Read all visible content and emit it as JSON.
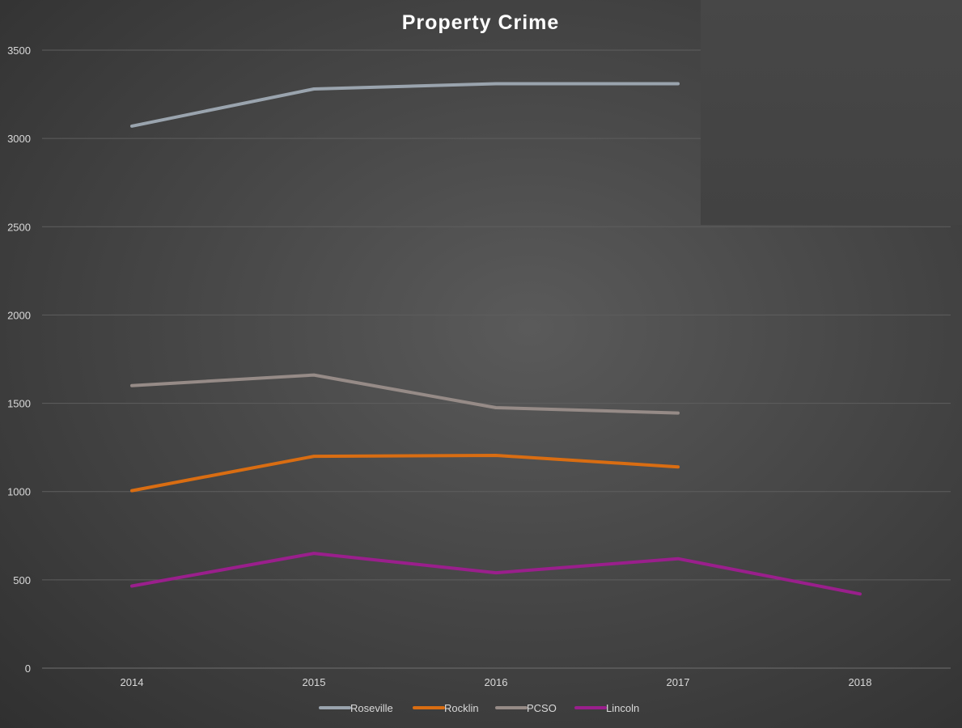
{
  "chart_data": {
    "type": "line",
    "title": "Property Crime",
    "xlabel": "",
    "ylabel": "",
    "categories": [
      "2014",
      "2015",
      "2016",
      "2017",
      "2018"
    ],
    "ylim": [
      0,
      3500
    ],
    "yticks": [
      0,
      500,
      1000,
      1500,
      2000,
      2500,
      3000,
      3500
    ],
    "grid": true,
    "legend_position": "bottom",
    "series": [
      {
        "name": "Roseville",
        "color": "#9aa4ae",
        "values": [
          3070,
          3280,
          3310,
          3310,
          null
        ]
      },
      {
        "name": "Rocklin",
        "color": "#d96d12",
        "values": [
          1005,
          1200,
          1205,
          1140,
          null
        ]
      },
      {
        "name": "PCSO",
        "color": "#968b87",
        "values": [
          1600,
          1660,
          1475,
          1445,
          null
        ]
      },
      {
        "name": "Lincoln",
        "color": "#9a1f8c",
        "values": [
          465,
          650,
          540,
          620,
          420
        ]
      }
    ]
  }
}
